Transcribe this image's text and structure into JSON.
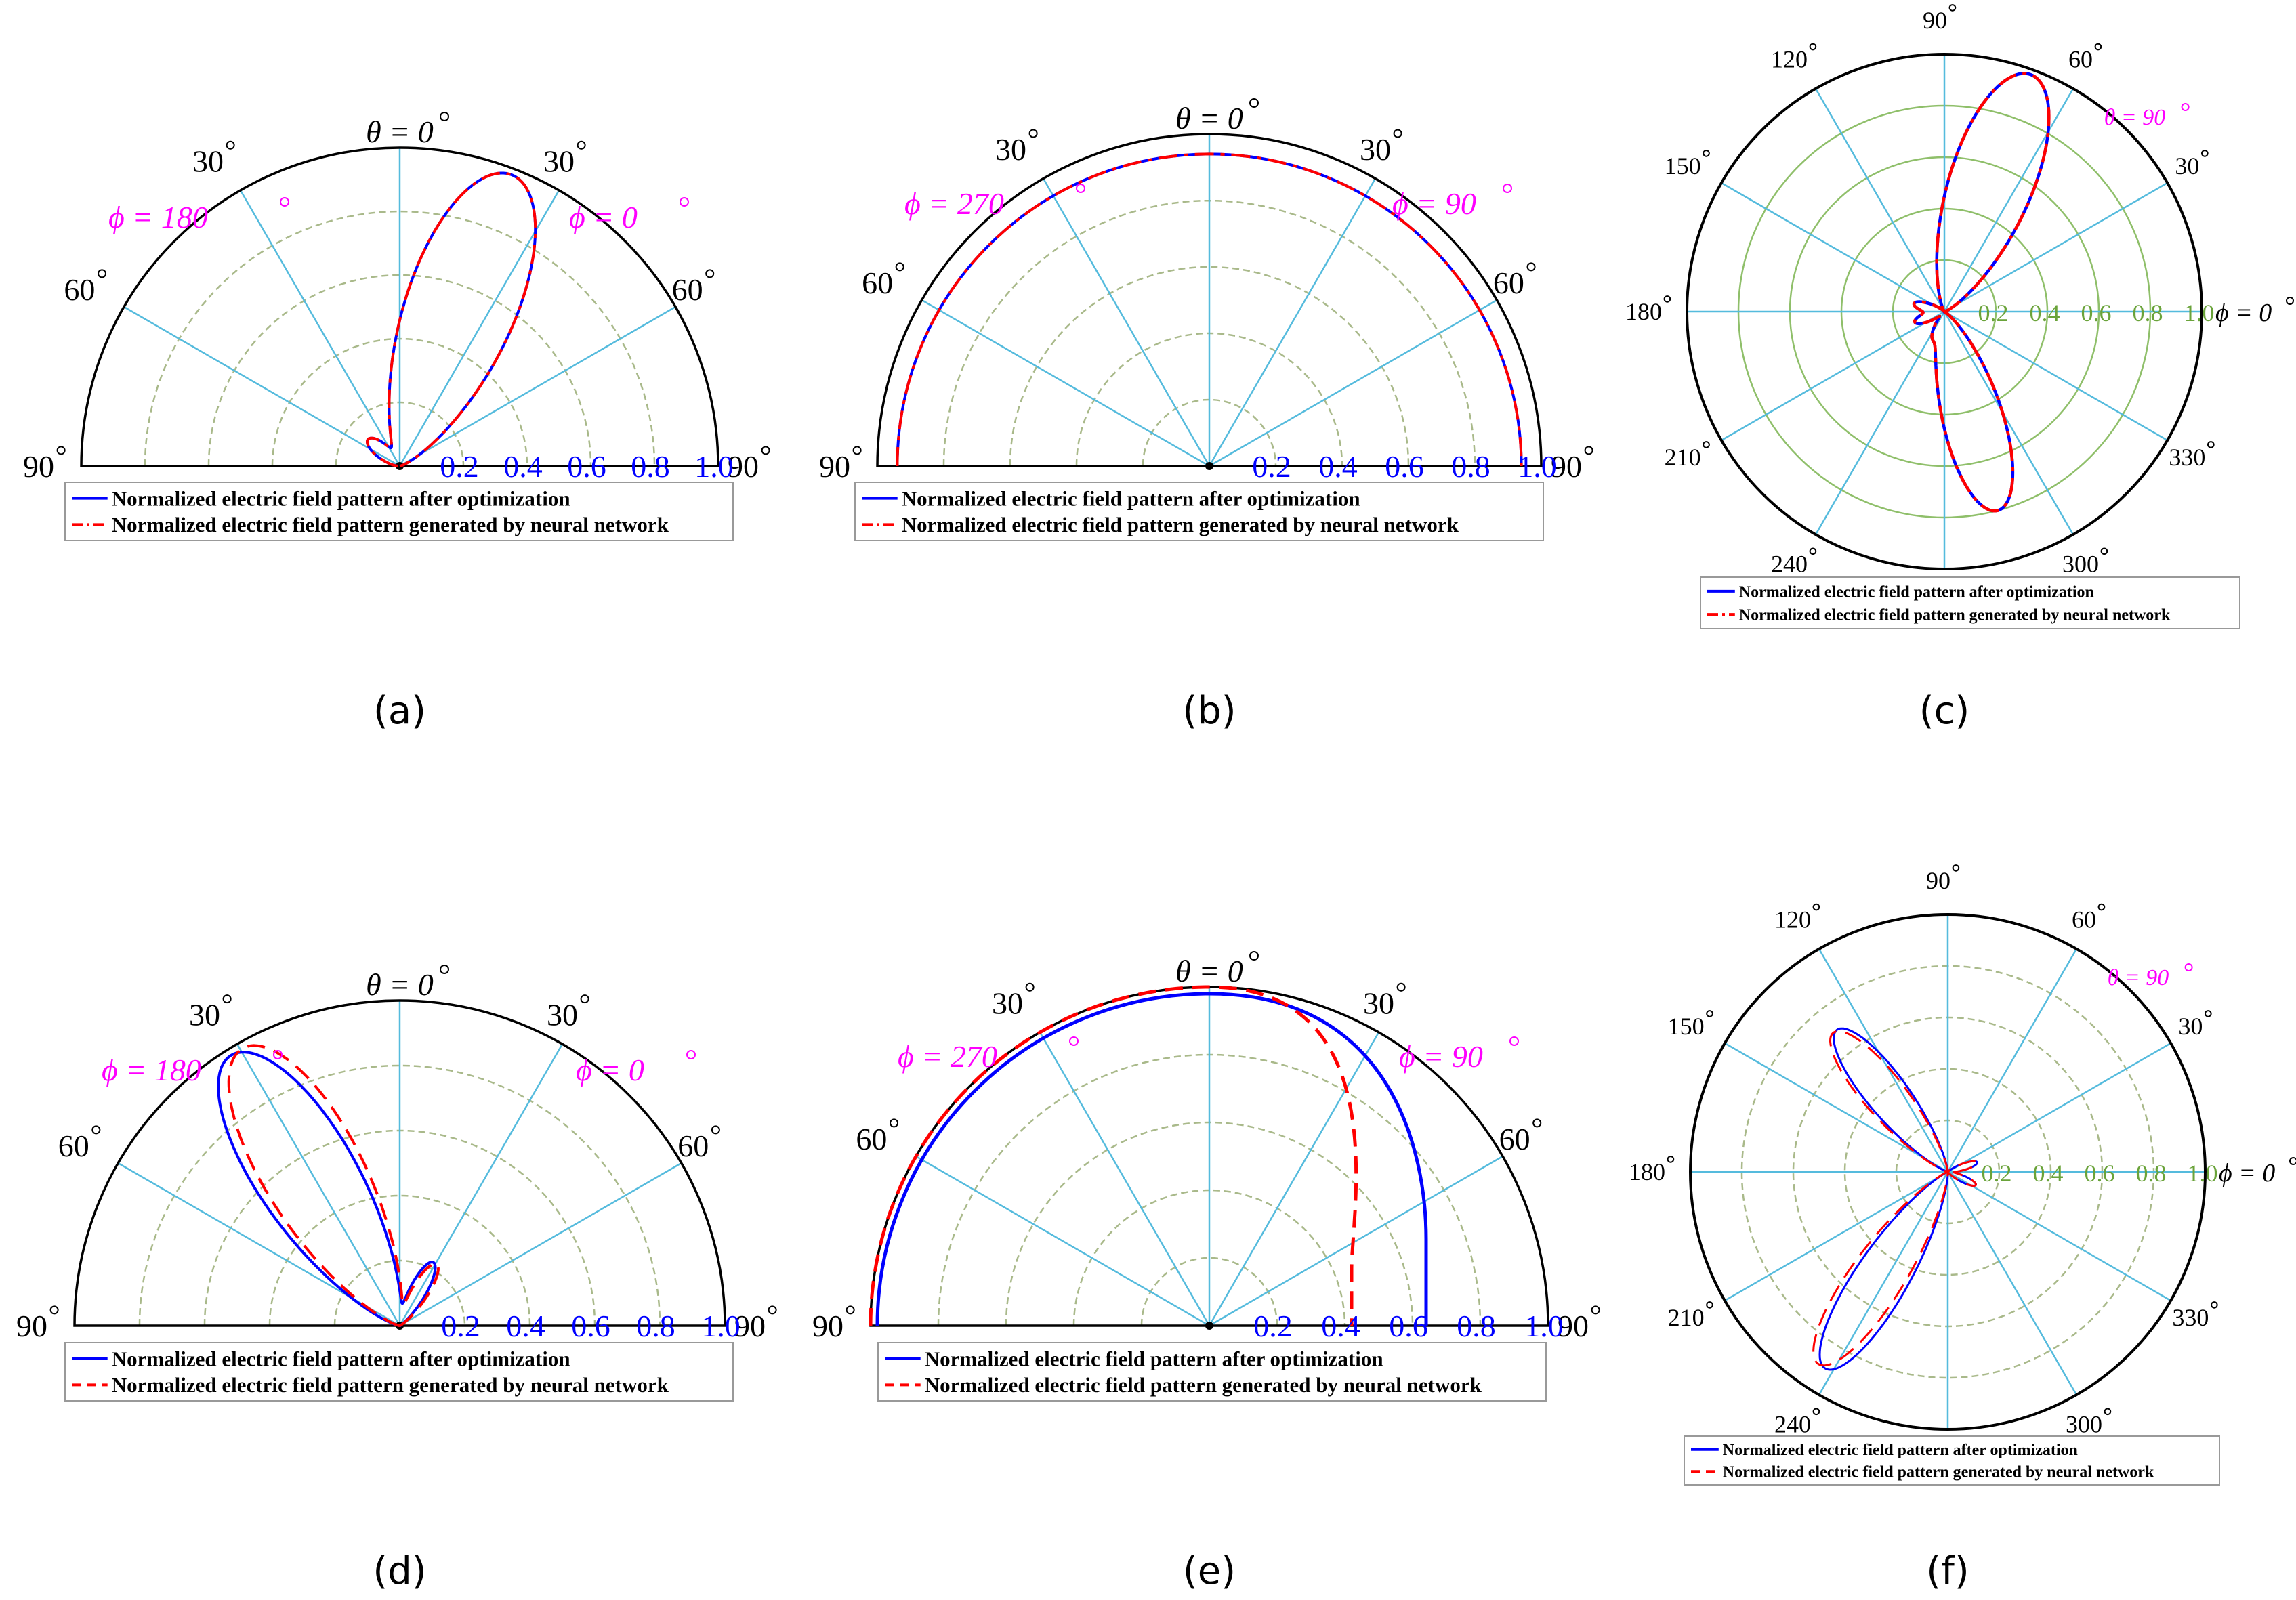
{
  "colors": {
    "primary_series": "#0000ff",
    "secondary_series": "#ff0000",
    "spokes": "#55bbdd",
    "rings": "#a9b98a",
    "ring_labels_blue": "#0000ff",
    "ring_labels_green": "#6aa33a",
    "annotations": "#ff00ff",
    "frame": "#000000"
  },
  "chart_data": [
    {
      "id": "a",
      "type": "polar-half",
      "caption": "(a)",
      "theta_label": "θ = 0",
      "left_phi": "ϕ = 180",
      "right_phi": "ϕ = 0",
      "angle_labels": [
        "90",
        "60",
        "30",
        "30",
        "60",
        "90"
      ],
      "r_ticks": [
        "0.2",
        "0.4",
        "0.6",
        "0.8",
        "1.0"
      ],
      "legend": [
        "Normalized electric field pattern after optimization",
        "Normalized electric field pattern generated by neural network"
      ],
      "secondary_style": "dashdot",
      "main_lobe": {
        "theta_deg": 21,
        "width_deg": 17,
        "peak": 0.98
      },
      "side_lobe": {
        "theta_deg": -50,
        "width_deg": 16,
        "peak": 0.13
      }
    },
    {
      "id": "b",
      "type": "polar-half",
      "caption": "(b)",
      "theta_label": "θ = 0",
      "left_phi": "ϕ = 270",
      "right_phi": "ϕ = 90",
      "angle_labels": [
        "90",
        "60",
        "30",
        "30",
        "60",
        "90"
      ],
      "r_ticks": [
        "0.2",
        "0.4",
        "0.6",
        "0.8",
        "1.0"
      ],
      "legend": [
        "Normalized electric field pattern after optimization",
        "Normalized electric field pattern generated by neural network"
      ],
      "secondary_style": "dashdot",
      "curve": {
        "pattern": "uniform",
        "radius": 0.94
      }
    },
    {
      "id": "c",
      "type": "polar-full",
      "caption": "(c)",
      "theta_label": "θ = 90",
      "phi_zero": "ϕ = 0",
      "angle_labels": [
        "0",
        "30",
        "60",
        "90",
        "120",
        "150",
        "180",
        "210",
        "240",
        "270",
        "300",
        "330"
      ],
      "r_ticks": [
        "0.2",
        "0.4",
        "0.6",
        "0.8",
        "1.0"
      ],
      "legend": [
        "Normalized electric field pattern after optimization",
        "Normalized electric field pattern generated by neural network"
      ],
      "secondary_style": "dashdot",
      "lobes": [
        {
          "phi_deg": 70,
          "width_deg": 16,
          "peak": 0.98
        },
        {
          "phi_deg": 285,
          "width_deg": 14,
          "peak": 0.8
        },
        {
          "phi_deg": 165,
          "width_deg": 12,
          "peak": 0.12
        },
        {
          "phi_deg": 200,
          "width_deg": 12,
          "peak": 0.12
        },
        {
          "phi_deg": 245,
          "width_deg": 10,
          "peak": 0.1
        }
      ]
    },
    {
      "id": "d",
      "type": "polar-half",
      "caption": "(d)",
      "theta_label": "θ = 0",
      "left_phi": "ϕ = 180",
      "right_phi": "ϕ = 0",
      "angle_labels": [
        "90",
        "60",
        "30",
        "30",
        "60",
        "90"
      ],
      "r_ticks": [
        "0.2",
        "0.4",
        "0.6",
        "0.8",
        "1.0"
      ],
      "legend": [
        "Normalized electric field pattern after optimization",
        "Normalized electric field pattern generated by neural network"
      ],
      "secondary_style": "dash",
      "main_lobe": {
        "theta_deg": -32,
        "width_deg": 15,
        "peak": 0.98,
        "shift_deg": 2.5
      },
      "side_lobe": {
        "theta_deg": 28,
        "width_deg": 11,
        "peak": 0.22,
        "shift_deg": 3
      }
    },
    {
      "id": "e",
      "type": "polar-half",
      "caption": "(e)",
      "theta_label": "θ = 0",
      "left_phi": "ϕ = 270",
      "right_phi": "ϕ = 90",
      "angle_labels": [
        "90",
        "60",
        "30",
        "30",
        "60",
        "90"
      ],
      "r_ticks": [
        "0.2",
        "0.4",
        "0.6",
        "0.8",
        "1.0"
      ],
      "legend": [
        "Normalized electric field pattern after optimization",
        "Normalized electric field pattern generated by neural network"
      ],
      "secondary_style": "dash",
      "primary_curve": {
        "left": 0.98,
        "right": 0.64
      },
      "secondary_curve": {
        "left": 1.0,
        "right": 0.42
      }
    },
    {
      "id": "f",
      "type": "polar-full",
      "caption": "(f)",
      "theta_label": "θ = 90",
      "phi_zero": "ϕ = 0",
      "angle_labels": [
        "0",
        "30",
        "60",
        "90",
        "120",
        "150",
        "180",
        "210",
        "240",
        "270",
        "300",
        "330"
      ],
      "r_ticks": [
        "0.2",
        "0.4",
        "0.6",
        "0.8",
        "1.0"
      ],
      "legend": [
        "Normalized electric field pattern after optimization",
        "Normalized electric field pattern generated by neural network"
      ],
      "secondary_style": "dash",
      "lobes": [
        {
          "phi_deg": 128,
          "width_deg": 11,
          "peak": 0.7,
          "shift_deg": 1.5
        },
        {
          "phi_deg": 238,
          "width_deg": 11,
          "peak": 0.9,
          "shift_deg": -2
        },
        {
          "phi_deg": 18,
          "width_deg": 10,
          "peak": 0.12,
          "shift_deg": 0
        },
        {
          "phi_deg": 335,
          "width_deg": 10,
          "peak": 0.12,
          "shift_deg": 0
        }
      ]
    }
  ]
}
